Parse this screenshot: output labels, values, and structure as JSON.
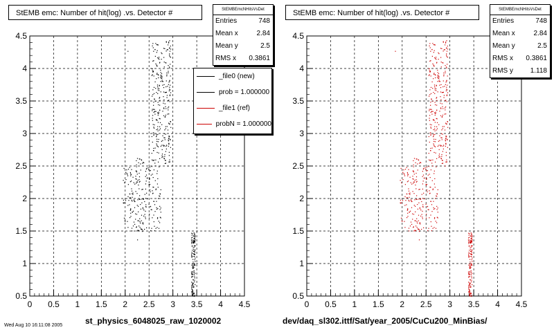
{
  "panels": [
    {
      "title": "StEMB emc: Number of hit(log) .vs. Detector #",
      "stats_title": "StEMBEmcNHitsVsDet",
      "stats": [
        {
          "label": "Entries",
          "value": "748"
        },
        {
          "label": "Mean x",
          "value": "2.84"
        },
        {
          "label": "Mean y",
          "value": "2.5"
        },
        {
          "label": "RMS x",
          "value": "0.3861"
        }
      ],
      "x_title": "st_physics_6048025_raw_1020002",
      "footer_note": "Wed Aug 10 16:11:08 2005"
    },
    {
      "title": "StEMB emc: Number of hit(log) .vs. Detector #",
      "stats_title": "StEMBEmcNHitsVsDet",
      "stats": [
        {
          "label": "Entries",
          "value": "748"
        },
        {
          "label": "Mean x",
          "value": "2.84"
        },
        {
          "label": "Mean y",
          "value": "2.5"
        },
        {
          "label": "RMS x",
          "value": "0.3861"
        },
        {
          "label": "RMS y",
          "value": "1.118"
        }
      ],
      "x_title": "dev/daq_sl302.ittf/Sat/year_2005/CuCu200_MinBias/"
    }
  ],
  "legend": {
    "entries": [
      {
        "label": "_file0 (new)",
        "color": "#000000"
      },
      {
        "label": "prob = 1.000000",
        "color": "#000000"
      },
      {
        "label": "_file1 (ref)",
        "color": "#cc0000"
      },
      {
        "label": "probN = 1.000000",
        "color": "#cc0000"
      }
    ]
  },
  "chart_data": [
    {
      "type": "scatter",
      "title": "StEMB emc: Number of hit(log) .vs. Detector #",
      "xlabel": "st_physics_6048025_raw_1020002",
      "ylabel": "",
      "xlim": [
        0,
        4.5
      ],
      "ylim": [
        0.5,
        4.5
      ],
      "xticks": [
        "0",
        "0.5",
        "1",
        "1.5",
        "2",
        "2.5",
        "3",
        "3.5",
        "4",
        "4.5"
      ],
      "yticks": [
        "0.5",
        "1",
        "1.5",
        "2",
        "2.5",
        "3",
        "3.5",
        "4",
        "4.5"
      ],
      "grid": true,
      "legend_position": "right",
      "series": [
        {
          "name": "_file0 (new)",
          "color": "#000000",
          "clusters": [
            {
              "x_range": [
                2.55,
                2.95
              ],
              "y_range": [
                2.5,
                4.45
              ],
              "count": 300
            },
            {
              "x_range": [
                1.95,
                2.75
              ],
              "y_range": [
                1.5,
                2.5
              ],
              "count": 230
            },
            {
              "x_range": [
                3.38,
                3.46
              ],
              "y_range": [
                0.5,
                1.48
              ],
              "count": 150
            },
            {
              "x_range": [
                2.2,
                2.4
              ],
              "y_range": [
                2.5,
                2.65
              ],
              "count": 12
            }
          ],
          "outliers": [
            {
              "x": 2.05,
              "y": 4.27
            },
            {
              "x": 2.7,
              "y": 4.18
            },
            {
              "x": 2.25,
              "y": 1.37
            }
          ]
        }
      ]
    },
    {
      "type": "scatter",
      "title": "StEMB emc: Number of hit(log) .vs. Detector #",
      "xlabel": "dev/daq_sl302.ittf/Sat/year_2005/CuCu200_MinBias/",
      "ylabel": "",
      "xlim": [
        0,
        4.5
      ],
      "ylim": [
        0.5,
        4.5
      ],
      "xticks": [
        "0",
        "0.5",
        "1",
        "1.5",
        "2",
        "2.5",
        "3",
        "3.5",
        "4",
        "4.5"
      ],
      "yticks": [
        "0.5",
        "1",
        "1.5",
        "2",
        "2.5",
        "3",
        "3.5",
        "4",
        "4.5"
      ],
      "grid": true,
      "series": [
        {
          "name": "_file1 (ref)",
          "color": "#cc0000",
          "clusters": [
            {
              "x_range": [
                2.55,
                2.95
              ],
              "y_range": [
                2.5,
                4.45
              ],
              "count": 300
            },
            {
              "x_range": [
                1.95,
                2.75
              ],
              "y_range": [
                1.5,
                2.5
              ],
              "count": 230
            },
            {
              "x_range": [
                3.38,
                3.46
              ],
              "y_range": [
                0.5,
                1.48
              ],
              "count": 150
            },
            {
              "x_range": [
                2.2,
                2.4
              ],
              "y_range": [
                2.5,
                2.65
              ],
              "count": 12
            }
          ],
          "outliers": [
            {
              "x": 1.85,
              "y": 4.27
            },
            {
              "x": 2.7,
              "y": 4.18
            },
            {
              "x": 2.35,
              "y": 1.37
            }
          ]
        }
      ]
    }
  ]
}
